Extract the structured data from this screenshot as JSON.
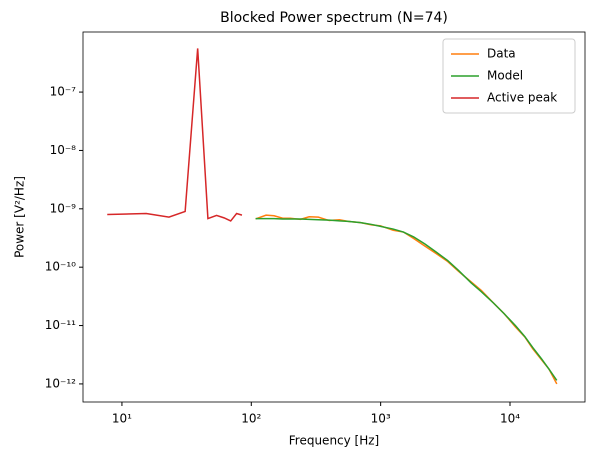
{
  "chart_data": {
    "type": "line",
    "title": "Blocked Power spectrum (N=74)",
    "xlabel": "Frequency [Hz]",
    "ylabel": "Power [V²/Hz]",
    "xscale": "log",
    "yscale": "log",
    "legend": "upper right",
    "xlim": [
      5,
      38000
    ],
    "ylim": [
      4.9e-13,
      1.07e-06
    ],
    "xticks": [
      {
        "value": 10,
        "label": "10¹"
      },
      {
        "value": 100,
        "label": "10²"
      },
      {
        "value": 1000,
        "label": "10³"
      },
      {
        "value": 10000,
        "label": "10⁴"
      }
    ],
    "yticks": [
      {
        "value": 1e-12,
        "label": "10⁻¹²"
      },
      {
        "value": 1e-11,
        "label": "10⁻¹¹"
      },
      {
        "value": 1e-10,
        "label": "10⁻¹⁰"
      },
      {
        "value": 1e-09,
        "label": "10⁻⁹"
      },
      {
        "value": 1e-08,
        "label": "10⁻⁸"
      },
      {
        "value": 1e-07,
        "label": "10⁻⁷"
      }
    ],
    "series": [
      {
        "name": "Data",
        "color": "#ff7f0e",
        "x": [
          108,
          130,
          150,
          175,
          200,
          240,
          280,
          330,
          400,
          480,
          560,
          700,
          850,
          1000,
          1250,
          1500,
          1800,
          2200,
          2700,
          3300,
          4000,
          5000,
          6000,
          7500,
          9000,
          11000,
          13000,
          15000,
          17500,
          20000,
          23000
        ],
        "values": [
          6.7e-10,
          7.8e-10,
          7.6e-10,
          6.9e-10,
          6.9e-10,
          6.6e-10,
          7.3e-10,
          7.2e-10,
          6.3e-10,
          6.5e-10,
          6.1e-10,
          5.8e-10,
          5.3e-10,
          5.1e-10,
          4.3e-10,
          4e-10,
          3.1e-10,
          2.3e-10,
          1.7e-10,
          1.25e-10,
          8.5e-11,
          5.6e-11,
          4e-11,
          2.4e-11,
          1.6e-11,
          9.5e-12,
          6.4e-12,
          4e-12,
          2.6e-12,
          1.8e-12,
          1e-12
        ]
      },
      {
        "name": "Model",
        "color": "#2ca02c",
        "x": [
          108,
          130,
          150,
          175,
          200,
          240,
          280,
          330,
          400,
          480,
          560,
          700,
          850,
          1000,
          1250,
          1500,
          1800,
          2200,
          2700,
          3300,
          4000,
          5000,
          6000,
          7500,
          9000,
          11000,
          13000,
          15000,
          17500,
          20000,
          23000
        ],
        "values": [
          6.8e-10,
          6.8e-10,
          6.8e-10,
          6.7e-10,
          6.7e-10,
          6.7e-10,
          6.6e-10,
          6.5e-10,
          6.4e-10,
          6.2e-10,
          6.1e-10,
          5.8e-10,
          5.4e-10,
          5e-10,
          4.5e-10,
          4e-10,
          3.3e-10,
          2.5e-10,
          1.8e-10,
          1.3e-10,
          8.8e-11,
          5.4e-11,
          3.8e-11,
          2.4e-11,
          1.6e-11,
          1e-11,
          6.5e-12,
          4.2e-12,
          2.7e-12,
          1.8e-12,
          1.15e-12
        ]
      },
      {
        "name": "Active peak",
        "color": "#d62728",
        "x": [
          7.7,
          15.4,
          23.1,
          30.8,
          38.5,
          46.2,
          53.9,
          61.6,
          69.3,
          77,
          84.7
        ],
        "values": [
          8e-10,
          8.3e-10,
          7.2e-10,
          9e-10,
          5.6e-07,
          6.8e-10,
          7.7e-10,
          7e-10,
          6.2e-10,
          8.3e-10,
          7.8e-10
        ]
      }
    ]
  }
}
